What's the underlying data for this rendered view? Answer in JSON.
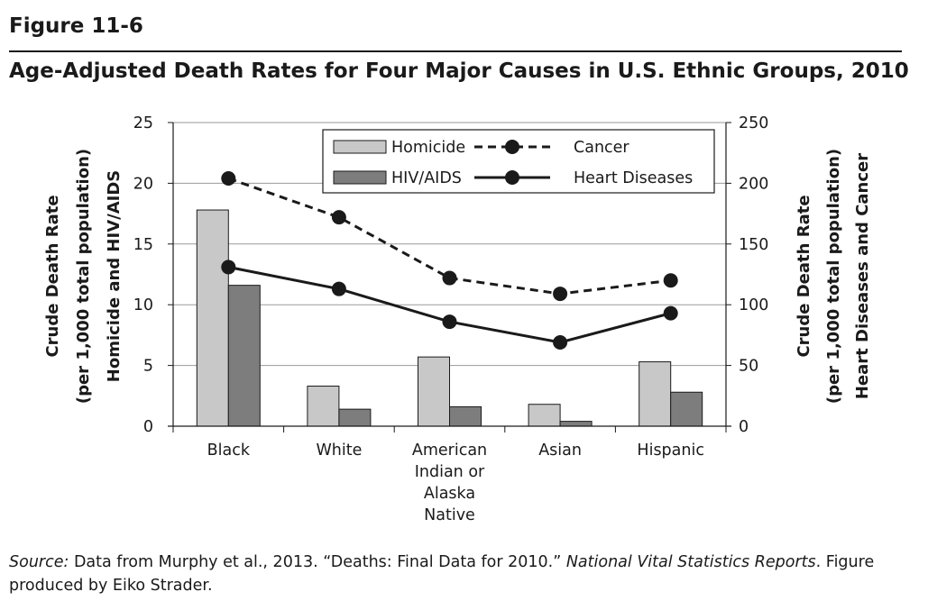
{
  "figure": {
    "label": "Figure 11-6",
    "title": "Age-Adjusted Death Rates for Four Major Causes in U.S. Ethnic Groups, 2010"
  },
  "source": {
    "label": "Source:",
    "text_before": " Data from Murphy et al., 2013. “Deaths: Final Data for 2010.” ",
    "journal": "National Vital Statistics Reports",
    "text_after": ". Figure produced by Eiko Strader."
  },
  "chart_data": {
    "type": "bar",
    "categories": [
      [
        "Black"
      ],
      [
        "White"
      ],
      [
        "American",
        "Indian or",
        "Alaska",
        "Native"
      ],
      [
        "Asian"
      ],
      [
        "Hispanic"
      ]
    ],
    "y_left": {
      "label_lines": [
        "Crude Death Rate",
        "(per 1,000 total population)",
        "Homicide and HIV/AIDS"
      ],
      "range": [
        0,
        25
      ],
      "ticks": [
        0,
        5,
        10,
        15,
        20,
        25
      ]
    },
    "y_right": {
      "label_lines": [
        "Crude Death Rate",
        "(per 1,000 total population)",
        "Heart Diseases and Cancer"
      ],
      "range": [
        0,
        250
      ],
      "ticks": [
        0,
        50,
        100,
        150,
        200,
        250
      ]
    },
    "grid": true,
    "legend_position": "top-right",
    "bar_series": [
      {
        "name": "Homicide",
        "axis": "left",
        "color": "#c8c8c8",
        "values": [
          17.8,
          3.3,
          5.7,
          1.8,
          5.3
        ]
      },
      {
        "name": "HIV/AIDS",
        "axis": "left",
        "color": "#7d7d7d",
        "values": [
          11.6,
          1.4,
          1.6,
          0.4,
          2.8
        ]
      }
    ],
    "line_series": [
      {
        "name": "Cancer",
        "axis": "right",
        "style": "dashed",
        "color": "#1a1a1a",
        "values": [
          204,
          172,
          122,
          109,
          120
        ]
      },
      {
        "name": "Heart Diseases",
        "axis": "right",
        "style": "solid",
        "color": "#1a1a1a",
        "values": [
          131,
          113,
          86,
          69,
          93
        ]
      }
    ]
  }
}
